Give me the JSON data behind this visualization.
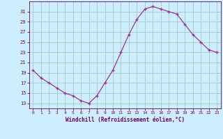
{
  "x": [
    0,
    1,
    2,
    3,
    4,
    5,
    6,
    7,
    8,
    9,
    10,
    11,
    12,
    13,
    14,
    15,
    16,
    17,
    18,
    19,
    20,
    21,
    22,
    23
  ],
  "y": [
    19.5,
    18.0,
    17.0,
    16.0,
    15.0,
    14.5,
    13.5,
    13.0,
    14.5,
    17.0,
    19.5,
    23.0,
    26.5,
    29.5,
    31.5,
    32.0,
    31.5,
    31.0,
    30.5,
    28.5,
    26.5,
    25.0,
    23.5,
    23.0
  ],
  "line_color": "#993399",
  "marker": "+",
  "bg_color": "#cceeff",
  "grid_color": "#aacccc",
  "xlabel": "Windchill (Refroidissement éolien,°C)",
  "yticks": [
    13,
    15,
    17,
    19,
    21,
    23,
    25,
    27,
    29,
    31
  ],
  "xlim": [
    -0.5,
    23.5
  ],
  "ylim": [
    12.0,
    33.0
  ],
  "font_color": "#660066"
}
